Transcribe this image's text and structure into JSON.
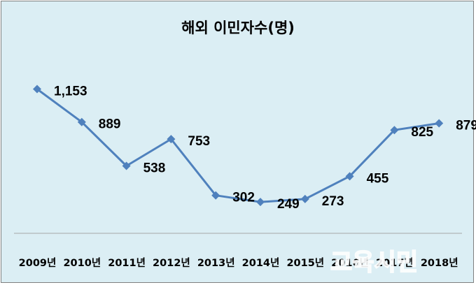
{
  "chart_data": {
    "type": "line",
    "title": "해외 이민자수(명)",
    "categories": [
      "2009년",
      "2010년",
      "2011년",
      "2012년",
      "2013년",
      "2014년",
      "2015년",
      "2016년",
      "2017년",
      "2018년"
    ],
    "series": [
      {
        "values": [
          1153,
          889,
          538,
          753,
          302,
          249,
          273,
          455,
          825,
          879
        ],
        "labels": [
          "1,153",
          "889",
          "538",
          "753",
          "302",
          "249",
          "273",
          "455",
          "825",
          "879"
        ]
      }
    ],
    "ylim": [
      0,
      1300
    ],
    "grid": false,
    "legend": "none"
  },
  "colors": {
    "background": "#dbeef4",
    "line": "#4f81bd",
    "axis": "#a6a6a6",
    "border": "#7f7f7f"
  },
  "watermark": {
    "text": "교육시민"
  }
}
